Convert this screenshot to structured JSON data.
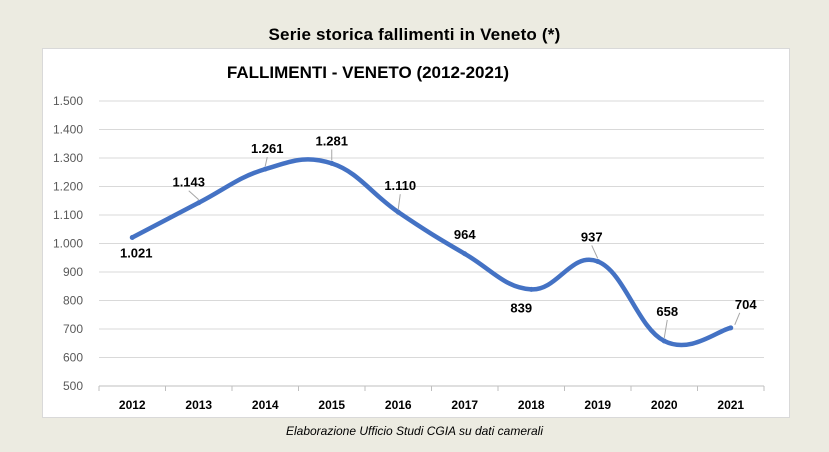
{
  "page": {
    "title": "Serie storica fallimenti in Veneto (*)",
    "caption": "Elaborazione Ufficio Studi CGIA su dati camerali"
  },
  "chart_data": {
    "type": "line",
    "title": "FALLIMENTI - VENETO (2012-2021)",
    "categories": [
      "2012",
      "2013",
      "2014",
      "2015",
      "2016",
      "2017",
      "2018",
      "2019",
      "2020",
      "2021"
    ],
    "series": [
      {
        "values": [
          1021,
          1143,
          1261,
          1281,
          1110,
          964,
          839,
          937,
          658,
          704
        ]
      }
    ],
    "data_labels": [
      "1.021",
      "1.143",
      "1.261",
      "1.281",
      "1.110",
      "964",
      "839",
      "937",
      "658",
      "704"
    ],
    "yticks": [
      500,
      600,
      700,
      800,
      900,
      1000,
      1100,
      1200,
      1300,
      1400,
      1500
    ],
    "ytick_labels": [
      "500",
      "600",
      "700",
      "800",
      "900",
      "1.000",
      "1.100",
      "1.200",
      "1.300",
      "1.400",
      "1.500"
    ],
    "ylim": [
      500,
      1500
    ],
    "grid": true,
    "smooth": true,
    "line_color": "#4472c4",
    "grid_color": "#d9d9d9"
  }
}
